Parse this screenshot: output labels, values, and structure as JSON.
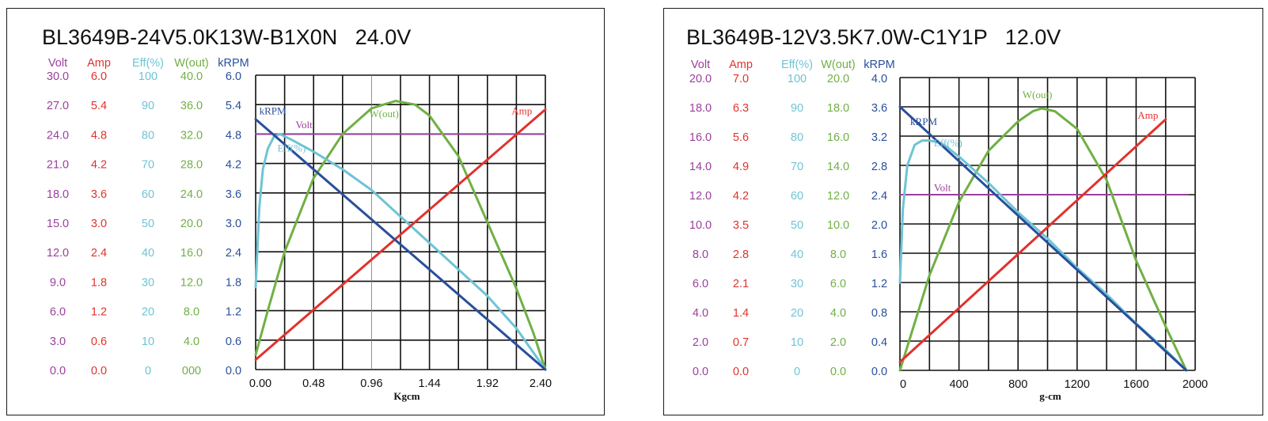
{
  "colors": {
    "volt": "#9b3f9c",
    "amp": "#e0322d",
    "eff": "#6ec4d4",
    "wout": "#70b044",
    "krpm": "#294f9a",
    "grid": "#111111",
    "thin_grid": "#777777"
  },
  "chart_data": [
    {
      "type": "line",
      "title": "BL3649B-24V5.0K13W-B1X0N   24.0V",
      "xlabel": "Kgcm",
      "x_ticks": [
        "0.00",
        "0.48",
        "0.96",
        "1.44",
        "1.92",
        "2.40"
      ],
      "xlim": [
        0,
        2.4
      ],
      "grid": true,
      "scale_headers": [
        "Volt",
        "Amp",
        "Eff(%)",
        "W(out)",
        "kRPM"
      ],
      "scales": [
        {
          "name": "Volt",
          "range": [
            0,
            30
          ],
          "ticks": [
            "30.0",
            "27.0",
            "24.0",
            "21.0",
            "18.0",
            "15.0",
            "12.0",
            "9.0",
            "6.0",
            "3.0",
            "0.0"
          ]
        },
        {
          "name": "Amp",
          "range": [
            0,
            6
          ],
          "ticks": [
            "6.0",
            "5.4",
            "4.8",
            "4.2",
            "3.6",
            "3.0",
            "2.4",
            "1.8",
            "1.2",
            "0.6",
            "0.0"
          ]
        },
        {
          "name": "Eff(%)",
          "range": [
            0,
            100
          ],
          "ticks": [
            "100",
            "90",
            "80",
            "70",
            "60",
            "50",
            "40",
            "30",
            "20",
            "10",
            "0"
          ]
        },
        {
          "name": "W(out)",
          "range": [
            0,
            40
          ],
          "ticks": [
            "40.0",
            "36.0",
            "32.0",
            "28.0",
            "24.0",
            "20.0",
            "16.0",
            "12.0",
            "8.0",
            "4.0",
            "000"
          ]
        },
        {
          "name": "kRPM",
          "range": [
            0,
            6
          ],
          "ticks": [
            "6.0",
            "5.4",
            "4.8",
            "4.2",
            "3.6",
            "3.0",
            "2.4",
            "1.8",
            "1.2",
            "0.6",
            "0.0"
          ]
        }
      ],
      "series": [
        {
          "name": "Volt",
          "label": "Volt",
          "x": [
            0,
            2.4
          ],
          "values": [
            24.0,
            24.0
          ]
        },
        {
          "name": "Amp",
          "label": "Amp",
          "x": [
            0,
            2.4
          ],
          "values": [
            0.2,
            5.3
          ]
        },
        {
          "name": "kRPM",
          "label": "kRPM",
          "x": [
            0,
            2.4
          ],
          "values": [
            5.1,
            0.0
          ]
        },
        {
          "name": "Eff(%)",
          "label": "Eff(%)",
          "x": [
            0,
            0.03,
            0.06,
            0.1,
            0.15,
            0.2,
            0.3,
            0.48,
            0.72,
            0.96,
            1.2,
            1.44,
            1.68,
            1.92,
            2.16,
            2.28,
            2.4
          ],
          "values": [
            28,
            55,
            68,
            75,
            79,
            80,
            78,
            74,
            68,
            61,
            52,
            43,
            34,
            25,
            14,
            7,
            0
          ]
        },
        {
          "name": "W(out)",
          "label": "W(out)",
          "x": [
            0,
            0.1,
            0.24,
            0.48,
            0.72,
            0.96,
            1.06,
            1.16,
            1.32,
            1.44,
            1.68,
            1.92,
            2.16,
            2.3,
            2.4
          ],
          "values": [
            2,
            8,
            16,
            26,
            32,
            35.5,
            36.0,
            36.5,
            36.0,
            34.5,
            29,
            20,
            11,
            5,
            0
          ]
        }
      ]
    },
    {
      "type": "line",
      "title": "BL3649B-12V3.5K7.0W-C1Y1P   12.0V",
      "xlabel": "g-cm",
      "x_ticks": [
        "0",
        "400",
        "800",
        "1200",
        "1600",
        "2000"
      ],
      "xlim": [
        0,
        2000
      ],
      "grid": true,
      "scale_headers": [
        "Volt",
        "Amp",
        "Eff(%)",
        "W(out)",
        "kRPM"
      ],
      "scales": [
        {
          "name": "Volt",
          "range": [
            0,
            20
          ],
          "ticks": [
            "20.0",
            "18.0",
            "16.0",
            "14.0",
            "12.0",
            "10.0",
            "8.0",
            "6.0",
            "4.0",
            "2.0",
            "0.0"
          ]
        },
        {
          "name": "Amp",
          "range": [
            0,
            7
          ],
          "ticks": [
            "7.0",
            "6.3",
            "5.6",
            "4.9",
            "4.2",
            "3.5",
            "2.8",
            "2.1",
            "1.4",
            "0.7",
            "0.0"
          ]
        },
        {
          "name": "Eff(%)",
          "range": [
            0,
            100
          ],
          "ticks": [
            "100",
            "90",
            "80",
            "70",
            "60",
            "50",
            "40",
            "30",
            "20",
            "10",
            "0"
          ]
        },
        {
          "name": "W(out)",
          "range": [
            0,
            20
          ],
          "ticks": [
            "20.0",
            "18.0",
            "16.0",
            "14.0",
            "12.0",
            "10.0",
            "8.0",
            "6.0",
            "4.0",
            "2.0",
            "0.0"
          ]
        },
        {
          "name": "kRPM",
          "range": [
            0,
            4
          ],
          "ticks": [
            "4.0",
            "3.6",
            "3.2",
            "2.8",
            "2.4",
            "2.0",
            "1.6",
            "1.2",
            "0.8",
            "0.4",
            "0.0"
          ]
        }
      ],
      "series": [
        {
          "name": "Volt",
          "label": "Volt",
          "x": [
            0,
            1950
          ],
          "values": [
            12.0,
            12.0
          ]
        },
        {
          "name": "Amp",
          "label": "Amp",
          "x": [
            0,
            1800
          ],
          "values": [
            0.2,
            6.0
          ]
        },
        {
          "name": "kRPM",
          "label": "kRPM",
          "x": [
            0,
            1940
          ],
          "values": [
            3.6,
            0.0
          ]
        },
        {
          "name": "Eff(%)",
          "label": "Eff(%)",
          "x": [
            0,
            20,
            50,
            100,
            150,
            200,
            250,
            300,
            400,
            600,
            800,
            1000,
            1200,
            1400,
            1600,
            1800,
            1940
          ],
          "values": [
            30,
            55,
            70,
            77,
            78.5,
            78.5,
            78,
            77,
            73,
            64,
            54,
            45,
            35,
            26,
            16,
            7,
            0
          ]
        },
        {
          "name": "W(out)",
          "label": "W(out)",
          "x": [
            0,
            200,
            400,
            600,
            800,
            900,
            960,
            1050,
            1200,
            1400,
            1600,
            1800,
            1940
          ],
          "values": [
            0,
            6.5,
            11.5,
            15.0,
            17.0,
            17.7,
            17.9,
            17.7,
            16.5,
            13.0,
            7.5,
            3.0,
            0
          ]
        }
      ]
    }
  ]
}
